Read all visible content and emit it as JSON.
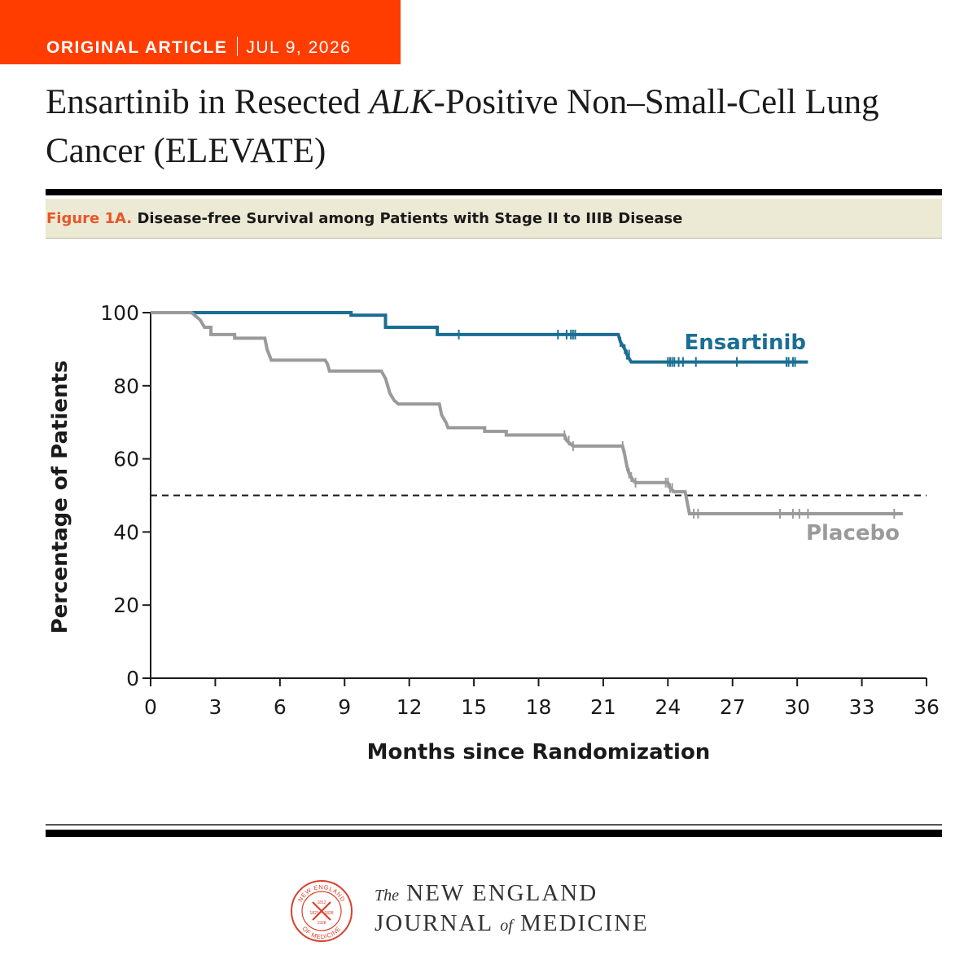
{
  "header": {
    "kind": "ORIGINAL ARTICLE",
    "date": "JUL 9, 2026",
    "title_pre": "Ensartinib in Resected ",
    "title_italic": "ALK",
    "title_post": "-Positive Non–Small-Cell Lung Cancer (ELEVATE)"
  },
  "figure": {
    "label": "Figure 1A.",
    "caption": "Disease-free Survival among Patients with Stage II to IIIB Disease"
  },
  "chart_data": {
    "type": "line",
    "step": true,
    "xlabel": "Months since Randomization",
    "ylabel": "Percentage of Patients",
    "xlim": [
      0,
      36
    ],
    "ylim": [
      0,
      100
    ],
    "xticks": [
      0,
      3,
      6,
      9,
      12,
      15,
      18,
      21,
      24,
      27,
      30,
      33,
      36
    ],
    "yticks": [
      0,
      20,
      40,
      60,
      80,
      100
    ],
    "reference_line": {
      "y": 50,
      "style": "dashed"
    },
    "series": [
      {
        "name": "Ensartinib",
        "color": "#1a6e93",
        "points": [
          [
            0,
            100
          ],
          [
            9.3,
            100
          ],
          [
            9.3,
            99.3
          ],
          [
            10.9,
            99.3
          ],
          [
            10.9,
            96
          ],
          [
            13.3,
            96
          ],
          [
            13.3,
            94
          ],
          [
            21.7,
            94
          ],
          [
            21.8,
            92
          ],
          [
            22.0,
            90
          ],
          [
            22.1,
            88.5
          ],
          [
            22.3,
            86.5
          ],
          [
            30.5,
            86.5
          ]
        ],
        "censor": [
          14.3,
          18.9,
          19.3,
          19.5,
          19.6,
          19.7,
          21.8,
          22.0,
          22.1,
          22.2,
          24.0,
          24.1,
          24.2,
          24.3,
          24.5,
          24.7,
          25.3,
          27.2,
          29.5,
          29.6,
          29.8,
          29.9
        ]
      },
      {
        "name": "Placebo",
        "color": "#9a9a9c",
        "points": [
          [
            0,
            100
          ],
          [
            1.9,
            100
          ],
          [
            2.1,
            99
          ],
          [
            2.3,
            98
          ],
          [
            2.5,
            96
          ],
          [
            2.8,
            94
          ],
          [
            3.9,
            94
          ],
          [
            3.9,
            93
          ],
          [
            5.3,
            93
          ],
          [
            5.4,
            90
          ],
          [
            5.6,
            87
          ],
          [
            8.1,
            87
          ],
          [
            8.2,
            86
          ],
          [
            8.3,
            84
          ],
          [
            10.7,
            84
          ],
          [
            10.9,
            82
          ],
          [
            11.0,
            80
          ],
          [
            11.1,
            78
          ],
          [
            11.3,
            76
          ],
          [
            11.5,
            75
          ],
          [
            13.4,
            75
          ],
          [
            13.5,
            72
          ],
          [
            13.7,
            70
          ],
          [
            13.8,
            68.5
          ],
          [
            15.5,
            68.5
          ],
          [
            15.5,
            67.5
          ],
          [
            16.5,
            67.5
          ],
          [
            16.5,
            66.5
          ],
          [
            19.2,
            66.5
          ],
          [
            19.3,
            65
          ],
          [
            19.5,
            64
          ],
          [
            19.6,
            63.5
          ],
          [
            21.9,
            63.5
          ],
          [
            22.0,
            61
          ],
          [
            22.1,
            58
          ],
          [
            22.2,
            56
          ],
          [
            22.3,
            55
          ],
          [
            22.4,
            54
          ],
          [
            22.5,
            53.5
          ],
          [
            24.0,
            53.5
          ],
          [
            24.1,
            52
          ],
          [
            24.3,
            51
          ],
          [
            24.8,
            51
          ],
          [
            24.9,
            48
          ],
          [
            25.0,
            45
          ],
          [
            34.9,
            45
          ]
        ],
        "censor": [
          19.2,
          19.4,
          19.6,
          21.9,
          22.0,
          22.1,
          22.2,
          22.3,
          22.5,
          23.9,
          24.0,
          24.1,
          24.2,
          25.2,
          25.4,
          29.2,
          29.8,
          30.1,
          30.5,
          34.5
        ]
      }
    ]
  },
  "footer": {
    "journal_the": "The",
    "journal_line1": "NEW ENGLAND",
    "journal_line2_a": "JOURNAL",
    "journal_of": "of",
    "journal_line2_b": "MEDICINE",
    "seal_top": "NEW ENGLAND",
    "seal_left": "OF MEDICINE",
    "seal_year1": "1812",
    "seal_year2": "1823",
    "seal_year3": "1828",
    "seal_year4": "1928"
  }
}
